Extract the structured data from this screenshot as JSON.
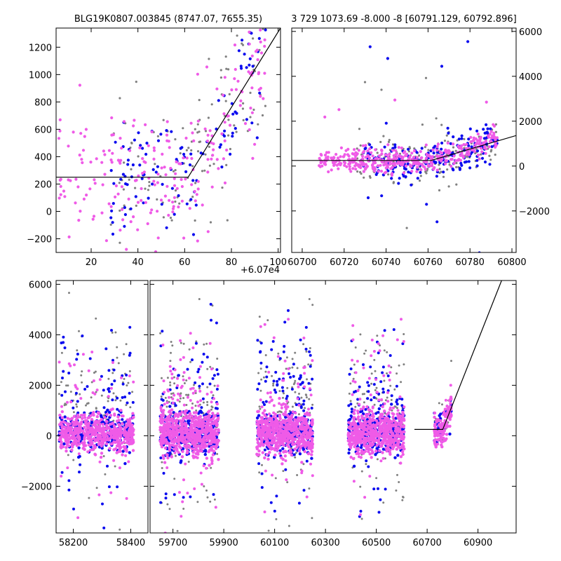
{
  "colors": {
    "gray": "#808080",
    "blue": "#0b0bef",
    "magenta": "#ef5be7",
    "line": "#000000"
  },
  "chart_data": [
    {
      "id": "zoom",
      "type": "scatter",
      "title": "BLG19K0807.003845 (8747.07, 7655.35)",
      "x_offset_label": "+6.07e4",
      "xlim": [
        5,
        101
      ],
      "ylim": [
        -300,
        1340
      ],
      "xticks": [
        20,
        40,
        60,
        80,
        100
      ],
      "xtick_labels": [
        "20",
        "40",
        "60",
        "80",
        "100"
      ],
      "yticks": [
        -200,
        0,
        200,
        400,
        600,
        800,
        1000,
        1200
      ],
      "ytick_labels": [
        "−200",
        "0",
        "200",
        "400",
        "600",
        "800",
        "1000",
        "1200"
      ],
      "model": [
        [
          5,
          250
        ],
        [
          61.5,
          250
        ],
        [
          101,
          1340
        ]
      ],
      "series": [
        {
          "name": "gray",
          "color": "gray",
          "cloud": {
            "seed": 11,
            "n": 120,
            "x_range": [
              28,
              95
            ],
            "base": 250,
            "slope": 25,
            "onset": 60,
            "spread": 260
          }
        },
        {
          "name": "blue",
          "color": "blue",
          "cloud": {
            "seed": 23,
            "n": 110,
            "x_range": [
              28,
              95
            ],
            "base": 250,
            "slope": 25,
            "onset": 60,
            "spread": 230
          }
        },
        {
          "name": "magenta",
          "color": "magenta",
          "cloud": {
            "seed": 37,
            "n": 230,
            "x_range": [
              6,
              95
            ],
            "base": 250,
            "slope": 25,
            "onset": 60,
            "spread": 240
          }
        }
      ]
    },
    {
      "id": "mid",
      "type": "scatter",
      "title": "3 729 1073.69 -8.000 -8 [60791.129, 60792.896]",
      "xlim": [
        60695,
        60802
      ],
      "ylim": [
        -3850,
        6150
      ],
      "xticks": [
        60700,
        60720,
        60740,
        60760,
        60780,
        60800
      ],
      "xtick_labels": [
        "60700",
        "60720",
        "60740",
        "60760",
        "60780",
        "60800"
      ],
      "yticks": [
        -2000,
        0,
        2000,
        4000,
        6000
      ],
      "ytick_labels": [
        "−2000",
        "0",
        "2000",
        "4000",
        "6000"
      ],
      "model": [
        [
          60695,
          250
        ],
        [
          60761.5,
          250
        ],
        [
          60802,
          1360
        ]
      ],
      "series": [
        {
          "name": "gray",
          "color": "gray",
          "cloud": {
            "seed": 5,
            "n": 170,
            "x_range": [
              60725,
              60793
            ],
            "base": 250,
            "slope": 27,
            "onset": 60760,
            "spread": 500,
            "outliers": 8
          }
        },
        {
          "name": "blue",
          "color": "blue",
          "cloud": {
            "seed": 17,
            "n": 200,
            "x_range": [
              60728,
              60793
            ],
            "base": 250,
            "slope": 27,
            "onset": 60760,
            "spread": 420,
            "outliers": 10
          }
        },
        {
          "name": "magenta",
          "color": "magenta",
          "cloud": {
            "seed": 29,
            "n": 420,
            "x_range": [
              60708,
              60793
            ],
            "base": 250,
            "slope": 27,
            "onset": 60760,
            "spread": 260,
            "outliers": 4
          }
        }
      ]
    },
    {
      "id": "full",
      "type": "scatter",
      "title": "",
      "xlim": [
        58140,
        61050
      ],
      "ylim": [
        -3850,
        6150
      ],
      "xticks": [
        58200,
        58400,
        59700,
        59900,
        60100,
        60300,
        60500,
        60700,
        60900
      ],
      "xtick_labels": [
        "58200",
        "58400",
        "59700",
        "59900",
        "60100",
        "60300",
        "60500",
        "60700",
        "60900"
      ],
      "yticks": [
        -2000,
        0,
        2000,
        4000,
        6000
      ],
      "ytick_labels": [
        "−2000",
        "0",
        "2000",
        "4000",
        "6000"
      ],
      "segments": [
        {
          "xlim": [
            58140,
            58460
          ]
        },
        {
          "xlim": [
            59610,
            61050
          ]
        }
      ],
      "model": [
        [
          60650,
          250
        ],
        [
          60761.5,
          250
        ],
        [
          60993,
          6150
        ]
      ],
      "seasons": [
        {
          "x_range": [
            58150,
            58410
          ],
          "n_core": 700,
          "n_halo": 260,
          "core_spread": 350
        },
        {
          "x_range": [
            59650,
            59880
          ],
          "n_core": 800,
          "n_halo": 330,
          "core_spread": 420
        },
        {
          "x_range": [
            60030,
            60250
          ],
          "n_core": 750,
          "n_halo": 300,
          "core_spread": 400
        },
        {
          "x_range": [
            60390,
            60610
          ],
          "n_core": 750,
          "n_halo": 300,
          "core_spread": 400
        },
        {
          "x_range": [
            60728,
            60795
          ],
          "n_core": 160,
          "n_halo": 30,
          "core_spread": 300,
          "rising": true
        }
      ]
    }
  ]
}
